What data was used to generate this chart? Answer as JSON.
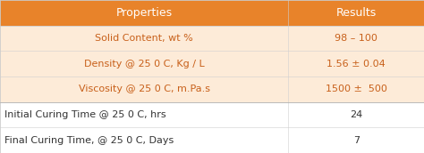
{
  "header": [
    "Properties",
    "Results"
  ],
  "rows": [
    [
      "Solid Content, wt %",
      "98 – 100"
    ],
    [
      "Density @ 25 0 C, Kg / L",
      "1.56 ± 0.04"
    ],
    [
      "Viscosity @ 25 0 C, m.Pa.s",
      "1500 ±  500"
    ],
    [
      "Initial Curing Time @ 25 0 C, hrs",
      "24"
    ],
    [
      "Final Curing Time, @ 25 0 C, Days",
      "7"
    ]
  ],
  "header_bg": "#E8832A",
  "header_text": "#FFFFFF",
  "row_bg_odd": "#FDEBD8",
  "row_bg_even": "#FFFFFF",
  "text_color_shaded": "#C8601A",
  "text_color_plain": "#333333",
  "col_split": 0.68,
  "fig_width": 4.74,
  "fig_height": 1.72,
  "dpi": 100
}
